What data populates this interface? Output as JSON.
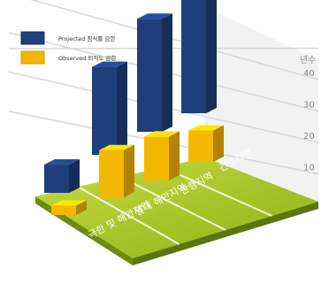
{
  "chart_data": {
    "type": "bar",
    "title": "",
    "xlabel": "",
    "ylabel": "",
    "unit_label": "년수",
    "ylim": [
      0,
      50
    ],
    "y_ticks": [
      10,
      20,
      30,
      40
    ],
    "grid": true,
    "legend_position": "top-left",
    "categories": [
      "극한 및 해안지역",
      "열대 해안지역",
      "한랭지역",
      "건조지역"
    ],
    "series": [
      {
        "name": "Projected 침식률 감한",
        "color": "#1f3f7a",
        "values": [
          9,
          28,
          36,
          42
        ]
      },
      {
        "name": "Observed 퇴적도 감한",
        "color": "#f5b800",
        "values": [
          3,
          15,
          14,
          10
        ]
      }
    ]
  },
  "colors": {
    "floor": "#a8c520",
    "floor_side": "#6f8a10",
    "grid": "#d9d9d9",
    "wall": "#f2f2f2"
  }
}
